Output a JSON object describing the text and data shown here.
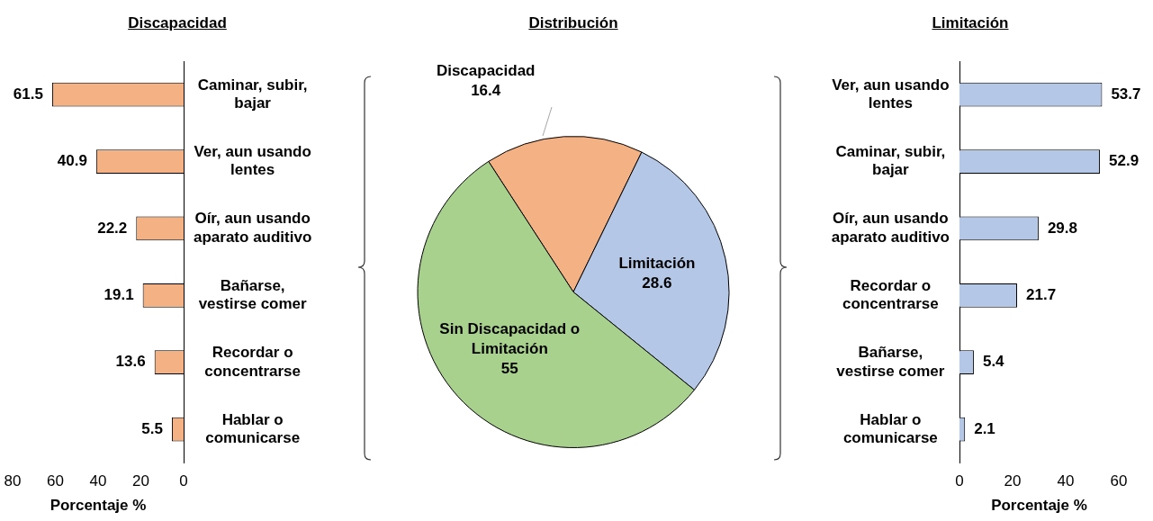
{
  "chart_data": [
    {
      "type": "bar",
      "orientation": "horizontal",
      "title": "Discapacidad",
      "categories": [
        "Caminar, subir, bajar",
        "Ver, aun usando lentes",
        "Oír, aun usando aparato auditivo",
        "Bañarse, vestirse comer",
        "Recordar o concentrarse",
        "Hablar o comunicarse"
      ],
      "values": [
        61.5,
        40.9,
        22.2,
        19.1,
        13.6,
        5.5
      ],
      "color": "#f4b183",
      "xlim": [
        80,
        0
      ],
      "xticks": [
        0,
        20,
        40,
        60,
        80
      ],
      "xlabel": "Porcentaje %",
      "data_labels": true
    },
    {
      "type": "pie",
      "title": "Distribución",
      "categories": [
        "Discapacidad",
        "Limitación",
        "Sin Discapacidad o Limitación"
      ],
      "values": [
        16.4,
        28.6,
        55
      ],
      "colors": [
        "#f4b183",
        "#b4c7e7",
        "#a9d18e"
      ],
      "data_labels": true
    },
    {
      "type": "bar",
      "orientation": "horizontal",
      "title": "Limitación",
      "categories": [
        "Ver, aun usando lentes",
        "Caminar, subir, bajar",
        "Oír, aun usando aparato auditivo",
        "Recordar o concentrarse",
        "Bañarse, vestirse comer",
        "Hablar o comunicarse"
      ],
      "values": [
        53.7,
        52.9,
        29.8,
        21.7,
        5.4,
        2.1
      ],
      "color": "#b4c7e7",
      "xlim": [
        0,
        60
      ],
      "xticks": [
        0,
        20,
        40,
        60
      ],
      "xlabel": "Porcentaje %",
      "data_labels": true
    }
  ]
}
